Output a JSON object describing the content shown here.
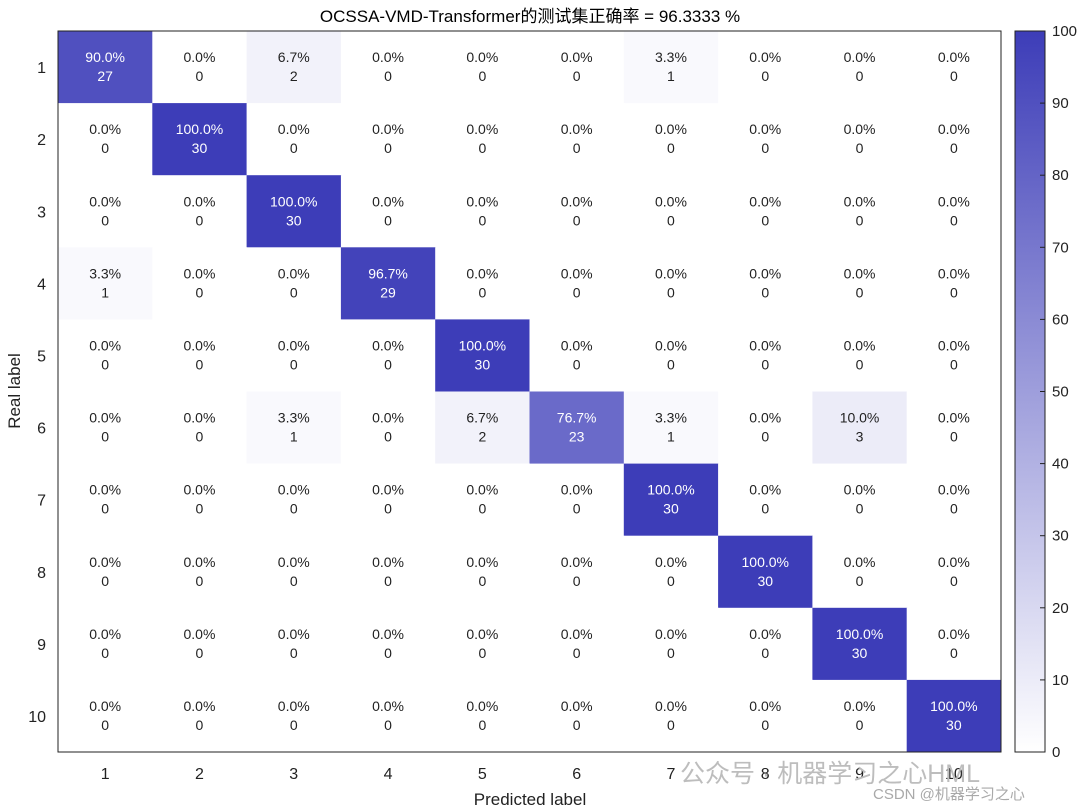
{
  "chart_data": {
    "type": "heatmap",
    "title": "OCSSA-VMD-Transformer的测试集正确率 = 96.3333 %",
    "xlabel": "Predicted label",
    "ylabel": "Real label",
    "x_categories": [
      "1",
      "2",
      "3",
      "4",
      "5",
      "6",
      "7",
      "8",
      "9",
      "10"
    ],
    "y_categories": [
      "1",
      "2",
      "3",
      "4",
      "5",
      "6",
      "7",
      "8",
      "9",
      "10"
    ],
    "counts": [
      [
        27,
        0,
        2,
        0,
        0,
        0,
        1,
        0,
        0,
        0
      ],
      [
        0,
        30,
        0,
        0,
        0,
        0,
        0,
        0,
        0,
        0
      ],
      [
        0,
        0,
        30,
        0,
        0,
        0,
        0,
        0,
        0,
        0
      ],
      [
        1,
        0,
        0,
        29,
        0,
        0,
        0,
        0,
        0,
        0
      ],
      [
        0,
        0,
        0,
        0,
        30,
        0,
        0,
        0,
        0,
        0
      ],
      [
        0,
        0,
        1,
        0,
        2,
        23,
        1,
        0,
        3,
        0
      ],
      [
        0,
        0,
        0,
        0,
        0,
        0,
        30,
        0,
        0,
        0
      ],
      [
        0,
        0,
        0,
        0,
        0,
        0,
        0,
        30,
        0,
        0
      ],
      [
        0,
        0,
        0,
        0,
        0,
        0,
        0,
        0,
        30,
        0
      ],
      [
        0,
        0,
        0,
        0,
        0,
        0,
        0,
        0,
        0,
        30
      ]
    ],
    "percentages": [
      [
        "90.0%",
        "0.0%",
        "6.7%",
        "0.0%",
        "0.0%",
        "0.0%",
        "3.3%",
        "0.0%",
        "0.0%",
        "0.0%"
      ],
      [
        "0.0%",
        "100.0%",
        "0.0%",
        "0.0%",
        "0.0%",
        "0.0%",
        "0.0%",
        "0.0%",
        "0.0%",
        "0.0%"
      ],
      [
        "0.0%",
        "0.0%",
        "100.0%",
        "0.0%",
        "0.0%",
        "0.0%",
        "0.0%",
        "0.0%",
        "0.0%",
        "0.0%"
      ],
      [
        "3.3%",
        "0.0%",
        "0.0%",
        "96.7%",
        "0.0%",
        "0.0%",
        "0.0%",
        "0.0%",
        "0.0%",
        "0.0%"
      ],
      [
        "0.0%",
        "0.0%",
        "0.0%",
        "0.0%",
        "100.0%",
        "0.0%",
        "0.0%",
        "0.0%",
        "0.0%",
        "0.0%"
      ],
      [
        "0.0%",
        "0.0%",
        "3.3%",
        "0.0%",
        "6.7%",
        "76.7%",
        "3.3%",
        "0.0%",
        "10.0%",
        "0.0%"
      ],
      [
        "0.0%",
        "0.0%",
        "0.0%",
        "0.0%",
        "0.0%",
        "0.0%",
        "100.0%",
        "0.0%",
        "0.0%",
        "0.0%"
      ],
      [
        "0.0%",
        "0.0%",
        "0.0%",
        "0.0%",
        "0.0%",
        "0.0%",
        "0.0%",
        "100.0%",
        "0.0%",
        "0.0%"
      ],
      [
        "0.0%",
        "0.0%",
        "0.0%",
        "0.0%",
        "0.0%",
        "0.0%",
        "0.0%",
        "0.0%",
        "100.0%",
        "0.0%"
      ],
      [
        "0.0%",
        "0.0%",
        "0.0%",
        "0.0%",
        "0.0%",
        "0.0%",
        "0.0%",
        "0.0%",
        "0.0%",
        "100.0%"
      ]
    ],
    "colorbar": {
      "range": [
        0,
        100
      ],
      "ticks": [
        "0",
        "10",
        "20",
        "30",
        "40",
        "50",
        "60",
        "70",
        "80",
        "90",
        "100"
      ],
      "color_low": "#ffffff",
      "color_high": "#3d3db8"
    },
    "grid": false
  },
  "watermark": {
    "main": "公众号 · 机器学习之心HML",
    "sub": "CSDN @机器学习之心"
  }
}
